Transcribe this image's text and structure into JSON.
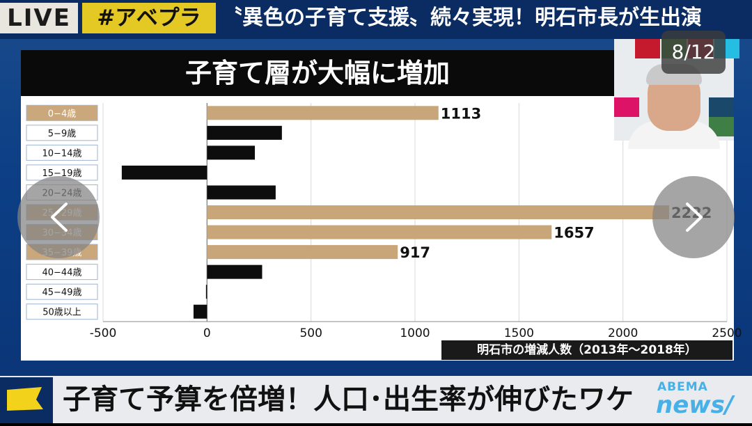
{
  "ticker": {
    "live_label": "LIVE",
    "hashtag": "#アベプラ",
    "headline": "〝異色の子育て支援〟続々実現！明石市長が生出演"
  },
  "board": {
    "title": "子育て層が大幅に増加",
    "caption": "明石市の増減人数（2013年〜2018年）"
  },
  "counter": "8/12",
  "bottom": {
    "headline": "子育て予算を倍増！人口･出生率が伸びたワケ",
    "logo_top": "ABEMA",
    "logo_bottom": "news/"
  },
  "colors": {
    "highlight_bar": "#c9a57a",
    "normal_bar": "#0d0d0d",
    "highlight_label_bg": "#cba87c",
    "normal_label_bg": "#ffffff"
  },
  "chart_data": {
    "type": "bar",
    "orientation": "horizontal",
    "categories": [
      "0−4歳",
      "5−9歳",
      "10−14歳",
      "15−19歳",
      "20−24歳",
      "25−29歳",
      "30−34歳",
      "35−39歳",
      "40−44歳",
      "45−49歳",
      "50歳以上"
    ],
    "values": [
      1113,
      360,
      230,
      -410,
      330,
      2222,
      1657,
      917,
      265,
      -5,
      -65
    ],
    "highlighted": [
      true,
      false,
      false,
      false,
      false,
      true,
      true,
      true,
      false,
      false,
      false
    ],
    "data_labels": [
      "1113",
      "",
      "",
      "",
      "",
      "2222",
      "1657",
      "917",
      "",
      "",
      ""
    ],
    "xlim": [
      -500,
      2500
    ],
    "x_ticks": [
      -500,
      0,
      500,
      1000,
      1500,
      2000,
      2500
    ],
    "grid": true,
    "title": "子育て層が大幅に増加"
  },
  "icons": {
    "prev": "chevron-left-icon",
    "next": "chevron-right-icon",
    "flag": "flag-icon"
  }
}
